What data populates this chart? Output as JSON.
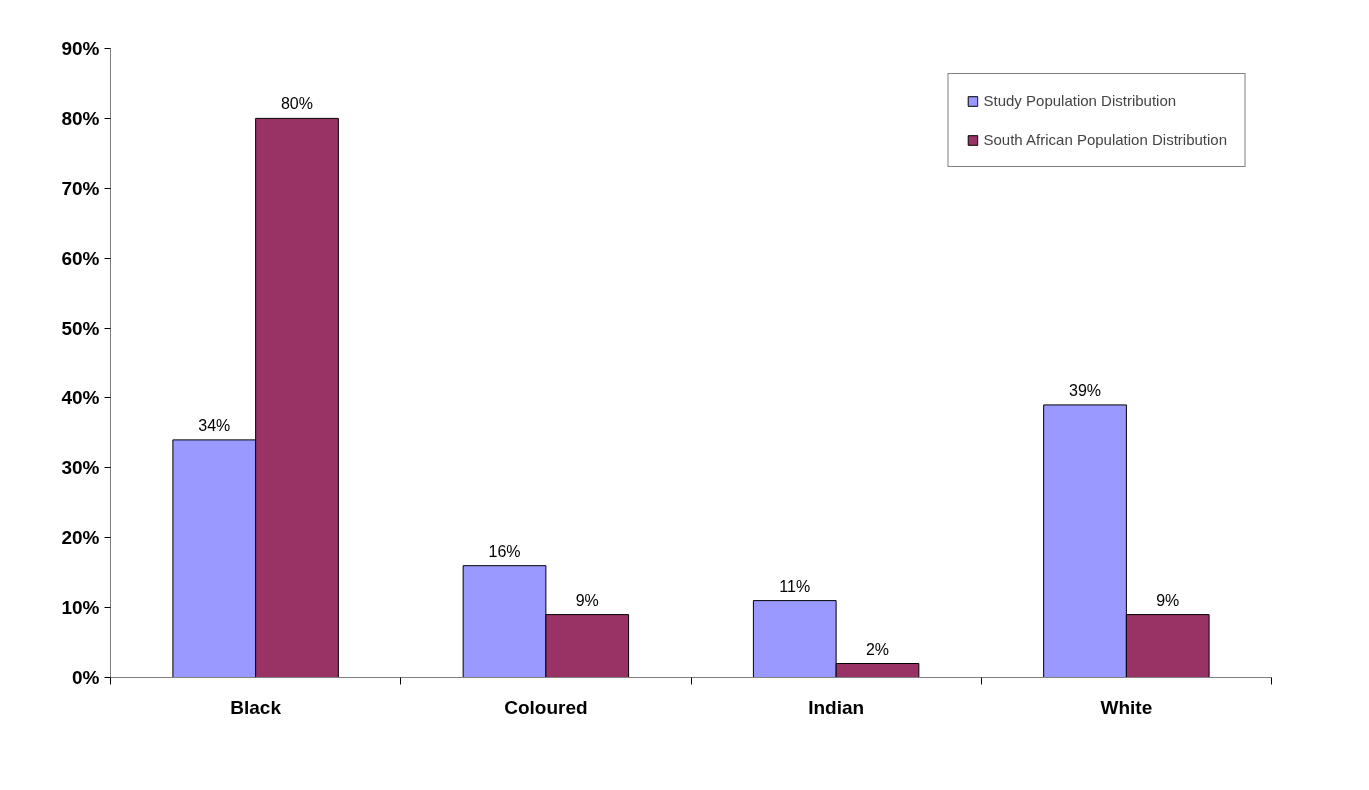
{
  "chart_data": {
    "type": "bar",
    "categories": [
      "Black",
      "Coloured",
      "Indian",
      "White"
    ],
    "series": [
      {
        "name": "Study Population Distribution",
        "color": "#9999ff",
        "values": [
          34,
          16,
          11,
          39
        ],
        "value_labels": [
          "34%",
          "16%",
          "11%",
          "39%"
        ]
      },
      {
        "name": "South African Population Distribution",
        "color": "#993366",
        "values": [
          80,
          9,
          2,
          9
        ],
        "value_labels": [
          "80%",
          "9%",
          "2%",
          "9%"
        ]
      }
    ],
    "ylim": [
      0,
      90
    ],
    "yticks": [
      {
        "value": 0,
        "label": "0%"
      },
      {
        "value": 10,
        "label": "10%"
      },
      {
        "value": 20,
        "label": "20%"
      },
      {
        "value": 30,
        "label": "30%"
      },
      {
        "value": 40,
        "label": "40%"
      },
      {
        "value": 50,
        "label": "50%"
      },
      {
        "value": 60,
        "label": "60%"
      },
      {
        "value": 70,
        "label": "70%"
      },
      {
        "value": 80,
        "label": "80%"
      },
      {
        "value": 90,
        "label": "90%"
      }
    ],
    "grid": false,
    "legend": "top right"
  }
}
